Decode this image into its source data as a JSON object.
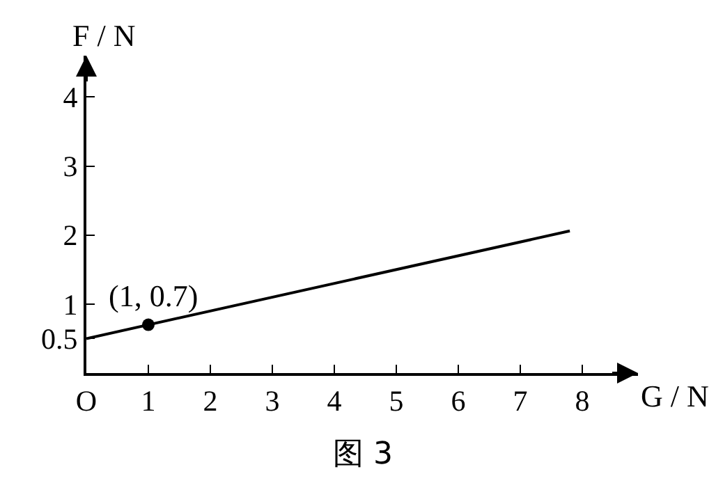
{
  "chart_data": {
    "type": "line",
    "title": "图 3",
    "xlabel": "G / N",
    "ylabel": "F / N",
    "series": [
      {
        "x": [
          0,
          7.8
        ],
        "values": [
          0.5,
          2.06
        ],
        "color": "#000000",
        "marker": "none"
      },
      {
        "type": "scatter",
        "x": [
          1
        ],
        "values": [
          0.7
        ],
        "color": "#000000",
        "marker": "circle"
      }
    ],
    "annotations": [
      {
        "text": "(1, 0.7)",
        "x": 1,
        "y": 0.7
      }
    ],
    "xlim": [
      0,
      8.9
    ],
    "ylim": [
      0,
      4.6
    ],
    "xticks": [
      {
        "value": 0,
        "label": "O"
      },
      1,
      2,
      3,
      4,
      5,
      6,
      7,
      8
    ],
    "yticks": [
      0.5,
      1,
      2,
      3,
      4
    ],
    "line_style": "solid"
  }
}
